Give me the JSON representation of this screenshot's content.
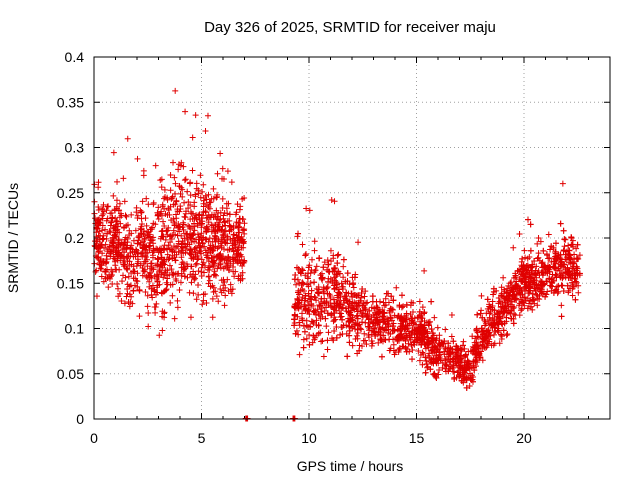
{
  "chart_data": {
    "type": "scatter",
    "title": "Day 326 of 2025, SRMTID for receiver maju",
    "xlabel": "GPS time / hours",
    "ylabel": "SRMTID / TECUs",
    "xlim": [
      0,
      24
    ],
    "ylim": [
      0,
      0.4
    ],
    "xticks": [
      "0",
      "5",
      "10",
      "15",
      "20"
    ],
    "yticks": [
      "0",
      "0.05",
      "0.1",
      "0.15",
      "0.2",
      "0.25",
      "0.3",
      "0.35",
      "0.4"
    ],
    "marker": "plus",
    "color": "#e00000",
    "grid": true,
    "series_description": "Dense cloud of red plus markers, roughly 0.08-0.37 TECU from 0 to 7 h, gap 7-9.3 h (zero-valued points at ~7.1 h and ~9.3 h), then 0.03-0.25 TECU from 9.3 to 22.6 h with a minimum near 17.5 h",
    "segments": [
      {
        "x": [
          0.0,
          1.0,
          2.0,
          3.0,
          4.0,
          5.0,
          6.0,
          7.0
        ],
        "center": [
          0.2,
          0.19,
          0.18,
          0.18,
          0.21,
          0.2,
          0.19,
          0.19
        ],
        "spread": [
          0.06,
          0.07,
          0.08,
          0.09,
          0.1,
          0.09,
          0.08,
          0.05
        ]
      },
      {
        "x": [
          9.3,
          10.0,
          11.0,
          12.0,
          13.0,
          14.0,
          15.0,
          16.0,
          17.0,
          17.5,
          18.0,
          19.0,
          20.0,
          21.0,
          22.0,
          22.6
        ],
        "center": [
          0.13,
          0.13,
          0.14,
          0.12,
          0.11,
          0.1,
          0.1,
          0.07,
          0.065,
          0.055,
          0.09,
          0.12,
          0.15,
          0.16,
          0.17,
          0.16
        ],
        "spread": [
          0.05,
          0.07,
          0.07,
          0.05,
          0.04,
          0.04,
          0.04,
          0.03,
          0.03,
          0.03,
          0.04,
          0.04,
          0.04,
          0.04,
          0.05,
          0.04
        ]
      }
    ],
    "zero_points_x": [
      7.1,
      9.3
    ]
  }
}
